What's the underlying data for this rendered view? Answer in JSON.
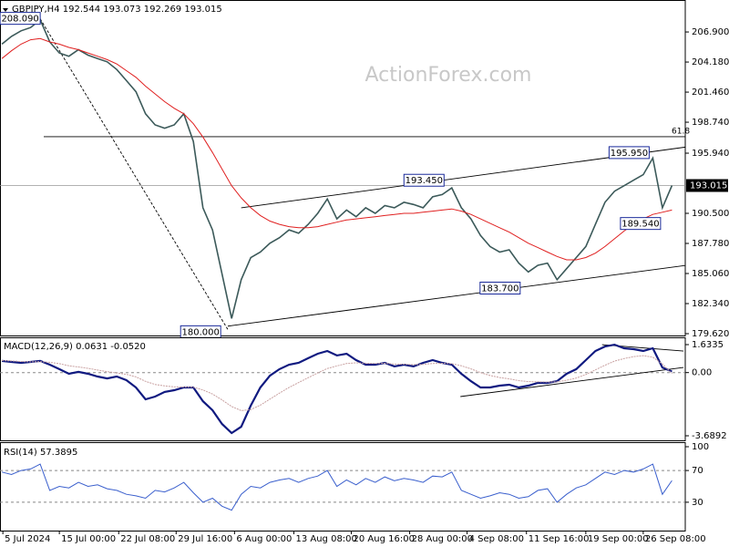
{
  "chart_data": [
    {
      "type": "line",
      "title": "GBPJPY,H4  192.544 193.073 192.269 193.015",
      "watermark": "ActionForex.com",
      "x": [
        0,
        1,
        2,
        3,
        4,
        5,
        6,
        7,
        8,
        9,
        10,
        11,
        12,
        13,
        14,
        15,
        16,
        17,
        18,
        19,
        20,
        21,
        22,
        23,
        24,
        25,
        26,
        27,
        28,
        29,
        30,
        31,
        32,
        33,
        34,
        35,
        36,
        37,
        38,
        39,
        40,
        41,
        42,
        43,
        44,
        45,
        46,
        47,
        48,
        49,
        50,
        51,
        52,
        53,
        54,
        55,
        56,
        57,
        58,
        59,
        60,
        61,
        62,
        63,
        64,
        65,
        66,
        67,
        68,
        69,
        70
      ],
      "xlim": [
        -0.2,
        71.2
      ],
      "xticks": [
        {
          "value": 0.1,
          "label": "5 Jul 2024"
        },
        {
          "value": 6,
          "label": "15 Jul 00:00"
        },
        {
          "value": 12.2,
          "label": "22 Jul 08:00"
        },
        {
          "value": 18.2,
          "label": "29 Jul 16:00"
        },
        {
          "value": 24.3,
          "label": "6 Aug 00:00"
        },
        {
          "value": 30.5,
          "label": "13 Aug 08:00"
        },
        {
          "value": 36.5,
          "label": "20 Aug 16:00"
        },
        {
          "value": 42.6,
          "label": "28 Aug 00:00"
        },
        {
          "value": 48.6,
          "label": "4 Sep 08:00"
        },
        {
          "value": 54.8,
          "label": "11 Sep 16:00"
        },
        {
          "value": 61,
          "label": "19 Sep 00:00"
        },
        {
          "value": 67,
          "label": "26 Sep 08:00"
        }
      ],
      "ylim": [
        179.455,
        209.79
      ],
      "yticks": [
        {
          "value": 206.9,
          "label": "206.900"
        },
        {
          "value": 204.18,
          "label": "204.180"
        },
        {
          "value": 201.46,
          "label": "201.460"
        },
        {
          "value": 198.74,
          "label": "198.740"
        },
        {
          "value": 195.94,
          "label": "195.940"
        },
        {
          "value": 190.5,
          "label": "190.500"
        },
        {
          "value": 187.78,
          "label": "187.780"
        },
        {
          "value": 185.06,
          "label": "185.060"
        },
        {
          "value": 182.34,
          "label": "182.340"
        },
        {
          "value": 179.62,
          "label": "179.620"
        }
      ],
      "series": [
        {
          "name": "GBPJPY",
          "color": "#3c5a5a",
          "values": [
            205.8,
            206.5,
            207.0,
            207.3,
            208.0,
            206.0,
            205.0,
            204.7,
            205.3,
            204.8,
            204.5,
            204.2,
            203.5,
            202.5,
            201.5,
            199.5,
            198.5,
            198.2,
            198.5,
            199.5,
            197.0,
            191.0,
            189.0,
            185.0,
            181.0,
            184.5,
            186.5,
            187.0,
            187.8,
            188.3,
            189.0,
            188.7,
            189.5,
            190.5,
            191.8,
            190.0,
            190.8,
            190.2,
            191.0,
            190.5,
            191.2,
            191.0,
            191.5,
            191.3,
            191.0,
            192.0,
            192.2,
            192.8,
            191.0,
            190.0,
            188.5,
            187.5,
            187.0,
            187.2,
            186.0,
            185.2,
            185.8,
            186.0,
            184.5,
            185.5,
            186.5,
            187.5,
            189.5,
            191.5,
            192.5,
            193.0,
            193.5,
            194.0,
            195.5,
            191.0,
            193.015
          ]
        },
        {
          "name": "MA",
          "color": "#e02020",
          "values": [
            204.5,
            205.2,
            205.8,
            206.2,
            206.3,
            206.0,
            205.8,
            205.5,
            205.3,
            205.0,
            204.7,
            204.4,
            204.0,
            203.4,
            202.8,
            202.0,
            201.3,
            200.6,
            200.0,
            199.5,
            198.6,
            197.4,
            196.0,
            194.5,
            193.0,
            191.9,
            191.0,
            190.3,
            189.8,
            189.5,
            189.3,
            189.2,
            189.2,
            189.3,
            189.5,
            189.7,
            189.9,
            190.0,
            190.1,
            190.2,
            190.3,
            190.4,
            190.5,
            190.5,
            190.6,
            190.7,
            190.8,
            190.9,
            190.7,
            190.4,
            190.0,
            189.6,
            189.2,
            188.8,
            188.3,
            187.8,
            187.4,
            187.0,
            186.6,
            186.3,
            186.3,
            186.5,
            186.9,
            187.5,
            188.2,
            188.9,
            189.5,
            190.0,
            190.4,
            190.6,
            190.8
          ]
        }
      ],
      "hlines": [
        {
          "value": 193.015,
          "label": "193.015",
          "style": "price"
        },
        {
          "value": 197.43,
          "label": "61.8",
          "style": "fibo"
        }
      ],
      "trendlines": [
        {
          "x": [
            4,
            23.6
          ],
          "y": [
            208.09,
            180.0
          ],
          "style": "dashed"
        },
        {
          "x": [
            25,
            71.5
          ],
          "y": [
            191.0,
            196.5
          ],
          "style": "solid"
        },
        {
          "x": [
            23.6,
            71.5
          ],
          "y": [
            180.3,
            185.8
          ],
          "style": "solid"
        }
      ],
      "annotations": [
        {
          "x": 4,
          "y": 208.09,
          "text": "208.090"
        },
        {
          "x": 24,
          "y": 180.0,
          "text": "180.000"
        },
        {
          "x": 46,
          "y": 193.45,
          "text": "193.450"
        },
        {
          "x": 55,
          "y": 183.7,
          "text": "183.700"
        },
        {
          "x": 68,
          "y": 195.95,
          "text": "195.950"
        },
        {
          "x": 69,
          "y": 189.54,
          "text": "189.540"
        }
      ]
    },
    {
      "type": "line",
      "title": "MACD(12,26,9) 0.0631 -0.0520",
      "ylim": [
        -3.6892,
        1.6335
      ],
      "yticks": [
        1.6335,
        {
          "value": 0,
          "label": "0.00"
        },
        -3.6892
      ],
      "series": [
        {
          "name": "MACD",
          "color": "#101a80",
          "values": [
            0.68,
            0.62,
            0.57,
            0.62,
            0.68,
            0.46,
            0.2,
            -0.07,
            0.04,
            -0.07,
            -0.23,
            -0.34,
            -0.23,
            -0.44,
            -0.87,
            -1.56,
            -1.4,
            -1.13,
            -1.03,
            -0.87,
            -0.87,
            -1.67,
            -2.2,
            -3.0,
            -3.53,
            -3.16,
            -1.93,
            -0.87,
            -0.18,
            0.2,
            0.46,
            0.57,
            0.84,
            1.1,
            1.26,
            1.0,
            1.1,
            0.73,
            0.46,
            0.46,
            0.57,
            0.36,
            0.46,
            0.36,
            0.57,
            0.73,
            0.57,
            0.46,
            -0.07,
            -0.5,
            -0.87,
            -0.87,
            -0.76,
            -0.71,
            -0.87,
            -0.76,
            -0.6,
            -0.6,
            -0.5,
            -0.07,
            0.2,
            0.73,
            1.26,
            1.52,
            1.63,
            1.42,
            1.37,
            1.26,
            1.42,
            0.3,
            0.0631
          ]
        },
        {
          "name": "Signal",
          "color": "#c8a0a0",
          "values": [
            0.7,
            0.68,
            0.65,
            0.63,
            0.64,
            0.6,
            0.52,
            0.4,
            0.33,
            0.25,
            0.15,
            0.05,
            -0.02,
            -0.1,
            -0.25,
            -0.51,
            -0.69,
            -0.78,
            -0.83,
            -0.84,
            -0.85,
            -1.01,
            -1.25,
            -1.6,
            -1.98,
            -2.22,
            -2.16,
            -1.9,
            -1.55,
            -1.2,
            -0.87,
            -0.58,
            -0.3,
            -0.02,
            0.24,
            0.39,
            0.53,
            0.57,
            0.55,
            0.53,
            0.54,
            0.5,
            0.49,
            0.46,
            0.48,
            0.53,
            0.54,
            0.52,
            0.4,
            0.22,
            0.0,
            -0.17,
            -0.29,
            -0.37,
            -0.47,
            -0.53,
            -0.54,
            -0.55,
            -0.54,
            -0.45,
            -0.32,
            -0.11,
            0.16,
            0.43,
            0.67,
            0.82,
            0.93,
            0.99,
            0.9,
            0.5,
            -0.052
          ]
        }
      ],
      "trendlines": [
        {
          "x": [
            62.7,
            71.2
          ],
          "y": [
            1.63,
            1.26
          ],
          "style": "solid"
        },
        {
          "x": [
            47.9,
            71.2
          ],
          "y": [
            -1.4,
            0.3
          ],
          "style": "solid"
        }
      ]
    },
    {
      "type": "line",
      "title": "RSI(14) 57.3895",
      "ylim": [
        0,
        100
      ],
      "yticks": [
        100,
        70,
        30
      ],
      "series": [
        {
          "name": "RSI",
          "color": "#3a5fcd",
          "values": [
            68,
            65,
            70,
            72,
            78,
            45,
            50,
            48,
            55,
            50,
            52,
            47,
            45,
            40,
            38,
            35,
            45,
            43,
            48,
            55,
            42,
            30,
            35,
            25,
            20,
            40,
            50,
            48,
            55,
            58,
            60,
            55,
            60,
            63,
            70,
            50,
            58,
            52,
            60,
            55,
            62,
            57,
            60,
            58,
            55,
            63,
            62,
            68,
            45,
            40,
            35,
            38,
            42,
            40,
            35,
            37,
            45,
            47,
            30,
            40,
            48,
            52,
            60,
            68,
            65,
            70,
            68,
            72,
            78,
            40,
            57.3895
          ]
        }
      ]
    }
  ]
}
